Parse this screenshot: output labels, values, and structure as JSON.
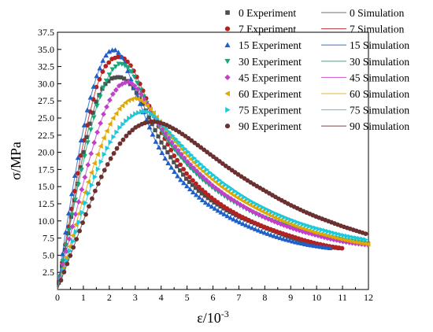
{
  "chart_data": {
    "type": "line",
    "title": "",
    "xlabel": "ε/10",
    "xlabel_sup": "-3",
    "ylabel": "σ/MPa",
    "xlim": [
      0,
      12
    ],
    "ylim": [
      0,
      37.5
    ],
    "x_ticks": [
      0,
      1,
      2,
      3,
      4,
      5,
      6,
      7,
      8,
      9,
      10,
      11,
      12
    ],
    "y_ticks": [
      2.5,
      5.0,
      7.5,
      10.0,
      12.5,
      15.0,
      17.5,
      20.0,
      22.5,
      25.0,
      27.5,
      30.0,
      32.5,
      35.0,
      37.5
    ],
    "grid": false,
    "legend_position": "top-right",
    "series": [
      {
        "angle": "0",
        "exp_label": "0 Experiment",
        "sim_label": "0  Simulation",
        "color": "#4d4d4d",
        "marker": "square",
        "x": [
          0,
          0.3,
          0.6,
          0.9,
          1.2,
          1.5,
          1.8,
          2.1,
          2.4,
          2.6,
          2.8,
          3.0,
          3.3,
          3.6,
          4.0,
          4.5,
          5.0,
          5.5,
          6.0,
          6.5,
          7.0,
          7.5,
          8.0,
          8.5,
          9.0,
          9.5,
          10.0,
          10.5,
          10.9
        ],
        "y": [
          0,
          6,
          12,
          18,
          23.5,
          27.5,
          29.8,
          30.8,
          31.0,
          30.7,
          30.0,
          29.0,
          27.0,
          24.5,
          21.5,
          18.5,
          16.0,
          14.2,
          12.8,
          11.6,
          10.6,
          9.8,
          9.0,
          8.3,
          7.6,
          7.0,
          6.6,
          6.2,
          6.0
        ]
      },
      {
        "angle": "7",
        "exp_label": "7 Experiment",
        "sim_label": "7  Simulation",
        "color": "#b22222",
        "marker": "circle",
        "x": [
          0,
          0.3,
          0.6,
          0.9,
          1.2,
          1.5,
          1.8,
          2.1,
          2.4,
          2.6,
          2.8,
          3.0,
          3.3,
          3.6,
          4.0,
          4.5,
          5.0,
          5.5,
          6.0,
          6.5,
          7.0,
          7.5,
          8.0,
          8.5,
          9.0,
          9.5,
          10.0,
          10.5,
          11.0
        ],
        "y": [
          0,
          6.5,
          13,
          19.5,
          25,
          29.5,
          32.3,
          33.6,
          34.0,
          33.6,
          32.8,
          31.5,
          29.0,
          26.2,
          23.0,
          19.5,
          16.8,
          14.8,
          13.2,
          11.9,
          10.8,
          9.9,
          9.1,
          8.4,
          7.8,
          7.2,
          6.7,
          6.3,
          6.0
        ]
      },
      {
        "angle": "15",
        "exp_label": "15 Experiment",
        "sim_label": "15  Simulation",
        "color": "#1f5fc8",
        "marker": "triangle-up",
        "x": [
          0,
          0.3,
          0.6,
          0.9,
          1.2,
          1.5,
          1.8,
          2.0,
          2.2,
          2.4,
          2.6,
          2.8,
          3.1,
          3.4,
          3.8,
          4.2,
          4.7,
          5.2,
          5.7,
          6.2,
          6.7,
          7.2,
          7.7,
          8.2,
          8.7,
          9.2,
          9.7,
          10.2,
          10.6
        ],
        "y": [
          0,
          8,
          15,
          21.5,
          27,
          31,
          33.8,
          34.7,
          35.0,
          34.4,
          33.0,
          31.0,
          28.0,
          25.0,
          21.5,
          18.8,
          16.2,
          14.3,
          12.7,
          11.5,
          10.4,
          9.5,
          8.7,
          8.0,
          7.4,
          6.9,
          6.5,
          6.2,
          6.0
        ]
      },
      {
        "angle": "30",
        "exp_label": "30 Experiment",
        "sim_label": "30 Simulation",
        "color": "#18a878",
        "marker": "triangle-down",
        "x": [
          0,
          0.3,
          0.6,
          0.9,
          1.2,
          1.5,
          1.8,
          2.1,
          2.4,
          2.7,
          2.9,
          3.1,
          3.4,
          3.7,
          4.1,
          4.6,
          5.1,
          5.6,
          6.1,
          6.6,
          7.1,
          7.6,
          8.1,
          8.6,
          9.1,
          9.6,
          10.1,
          10.6,
          11.1,
          11.6,
          12.0
        ],
        "y": [
          0,
          6,
          11.5,
          17,
          22,
          26.5,
          29.8,
          32,
          33.0,
          32.5,
          31.5,
          30.0,
          27.5,
          25.2,
          22.6,
          20.0,
          17.8,
          16.0,
          14.5,
          13.2,
          12.1,
          11.1,
          10.3,
          9.6,
          9.0,
          8.5,
          8.0,
          7.6,
          7.2,
          6.9,
          6.7
        ]
      },
      {
        "angle": "45",
        "exp_label": "45 Experiment",
        "sim_label": "45 Simulation",
        "color": "#c040c8",
        "marker": "diamond",
        "x": [
          0,
          0.3,
          0.6,
          0.9,
          1.2,
          1.5,
          1.8,
          2.1,
          2.4,
          2.7,
          2.9,
          3.1,
          3.3,
          3.6,
          4.0,
          4.5,
          5.0,
          5.5,
          6.0,
          6.5,
          7.0,
          7.5,
          8.0,
          8.5,
          9.0,
          9.5,
          10.0,
          10.5,
          11.0,
          11.5,
          12.0
        ],
        "y": [
          0,
          5,
          9.5,
          14,
          18.5,
          22.5,
          25.8,
          28.3,
          29.8,
          30.3,
          30.0,
          29.2,
          28.0,
          26.2,
          23.7,
          21.0,
          18.7,
          16.8,
          15.1,
          13.7,
          12.5,
          11.4,
          10.5,
          9.7,
          9.0,
          8.4,
          7.9,
          7.4,
          7.0,
          6.7,
          6.5
        ]
      },
      {
        "angle": "60",
        "exp_label": "60 Experiment",
        "sim_label": "60 Simulation",
        "color": "#e0a800",
        "marker": "triangle-left",
        "x": [
          0,
          0.3,
          0.6,
          0.9,
          1.2,
          1.5,
          1.8,
          2.1,
          2.4,
          2.7,
          3.0,
          3.2,
          3.4,
          3.7,
          4.0,
          4.4,
          4.9,
          5.4,
          5.9,
          6.4,
          6.9,
          7.4,
          7.9,
          8.4,
          8.9,
          9.4,
          9.9,
          10.4,
          10.9,
          11.4,
          12.0
        ],
        "y": [
          0,
          4,
          8,
          12,
          15.8,
          19.2,
          22.2,
          24.7,
          26.4,
          27.5,
          27.9,
          27.7,
          27.1,
          25.8,
          24.2,
          22.2,
          20.0,
          18.0,
          16.3,
          14.8,
          13.5,
          12.4,
          11.4,
          10.5,
          9.7,
          9.0,
          8.4,
          7.9,
          7.4,
          7.0,
          6.6
        ]
      },
      {
        "angle": "75",
        "exp_label": "75 Experiment",
        "sim_label": "75 Simulation",
        "color": "#1ec8d8",
        "marker": "triangle-right",
        "x": [
          0,
          0.3,
          0.6,
          0.9,
          1.2,
          1.5,
          1.8,
          2.1,
          2.4,
          2.7,
          3.0,
          3.3,
          3.5,
          3.7,
          4.0,
          4.4,
          4.9,
          5.4,
          5.9,
          6.4,
          6.9,
          7.4,
          7.9,
          8.4,
          8.9,
          9.4,
          9.9,
          10.4,
          10.9,
          11.4,
          12.0
        ],
        "y": [
          0,
          3.5,
          7,
          10.5,
          14,
          17,
          19.7,
          21.9,
          23.6,
          24.8,
          25.6,
          26.0,
          25.9,
          25.4,
          24.3,
          22.6,
          20.6,
          18.7,
          17.0,
          15.5,
          14.2,
          13.0,
          12.0,
          11.1,
          10.3,
          9.6,
          9.0,
          8.5,
          8.0,
          7.6,
          7.2
        ]
      },
      {
        "angle": "90",
        "exp_label": "90  Experiment",
        "sim_label": "90 Simulation",
        "color": "#6b3030",
        "marker": "circle",
        "x": [
          0,
          0.3,
          0.6,
          0.9,
          1.2,
          1.5,
          1.8,
          2.1,
          2.4,
          2.7,
          3.0,
          3.3,
          3.6,
          3.9,
          4.2,
          4.6,
          5.0,
          5.5,
          6.0,
          6.5,
          7.0,
          7.5,
          8.0,
          8.5,
          9.0,
          9.5,
          10.0,
          10.5,
          11.0,
          11.5,
          12.0
        ],
        "y": [
          0,
          3,
          6,
          9,
          12,
          14.8,
          17.3,
          19.4,
          21.2,
          22.6,
          23.6,
          24.2,
          24.5,
          24.4,
          24.0,
          23.2,
          22.2,
          20.8,
          19.4,
          18.0,
          16.7,
          15.5,
          14.4,
          13.3,
          12.3,
          11.4,
          10.6,
          9.9,
          9.2,
          8.6,
          8.0
        ]
      }
    ]
  }
}
